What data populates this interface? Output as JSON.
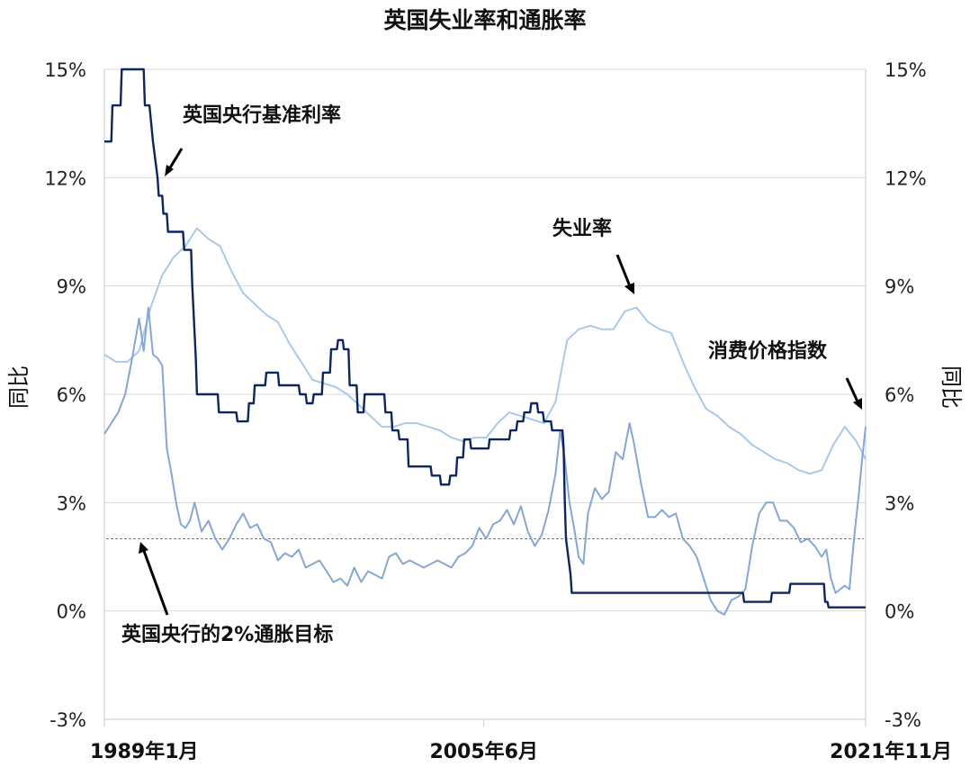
{
  "chart_data": {
    "type": "line",
    "title": "英国失业率和通胀率",
    "ylabel_left": "同比",
    "ylabel_right": "同比",
    "ylim": [
      -3,
      15
    ],
    "yticks": [
      "-3%",
      "0%",
      "3%",
      "6%",
      "9%",
      "12%",
      "15%"
    ],
    "ytick_values": [
      -3,
      0,
      3,
      6,
      9,
      12,
      15
    ],
    "xlim": [
      1989.0,
      2021.9
    ],
    "xtick_labels": [
      {
        "label": "1989年1月",
        "x": 1989.0
      },
      {
        "label": "2005年6月",
        "x": 2005.4
      },
      {
        "label": "2021年11月",
        "x": 2021.9
      }
    ],
    "grid": true,
    "target_line": {
      "value": 2.0
    },
    "series": [
      {
        "name": "英国央行基准利率",
        "color": "#0d2560",
        "x": [
          1989.0,
          1989.3,
          1989.35,
          1989.7,
          1989.75,
          1990.7,
          1990.75,
          1990.95,
          1991.1,
          1991.3,
          1991.35,
          1991.5,
          1991.55,
          1991.7,
          1991.75,
          1992.4,
          1992.45,
          1992.75,
          1992.8,
          1992.95,
          1993.0,
          1993.9,
          1993.95,
          1994.7,
          1994.75,
          1995.2,
          1995.25,
          1995.45,
          1995.5,
          1995.95,
          1996.0,
          1996.5,
          1996.55,
          1997.4,
          1997.45,
          1997.7,
          1997.75,
          1998.0,
          1998.05,
          1998.4,
          1998.45,
          1998.75,
          1998.8,
          1999.05,
          1999.1,
          1999.3,
          1999.35,
          1999.55,
          1999.6,
          1999.9,
          1999.95,
          2000.2,
          2000.25,
          2001.1,
          2001.15,
          2001.4,
          2001.45,
          2001.7,
          2001.75,
          2002.1,
          2002.15,
          2003.1,
          2003.15,
          2003.5,
          2003.55,
          2003.9,
          2003.95,
          2004.2,
          2004.25,
          2004.5,
          2004.55,
          2004.8,
          2004.85,
          2005.6,
          2005.65,
          2006.5,
          2006.55,
          2006.8,
          2006.85,
          2007.1,
          2007.15,
          2007.4,
          2007.45,
          2007.7,
          2007.75,
          2007.95,
          2008.0,
          2008.3,
          2008.35,
          2008.8,
          2008.85,
          2008.9,
          2008.95,
          2009.15,
          2009.2,
          2016.6,
          2016.65,
          2017.8,
          2017.85,
          2018.6,
          2018.65,
          2020.1,
          2020.15,
          2020.25,
          2020.3,
          2021.9
        ],
        "values": [
          13.0,
          13.0,
          14.0,
          14.0,
          15.0,
          15.0,
          14.0,
          14.0,
          13.0,
          12.0,
          11.5,
          11.5,
          11.0,
          11.0,
          10.5,
          10.5,
          10.0,
          10.0,
          9.0,
          7.0,
          6.0,
          6.0,
          5.5,
          5.5,
          5.25,
          5.25,
          5.75,
          5.75,
          6.25,
          6.25,
          6.6,
          6.6,
          6.25,
          6.25,
          6.0,
          6.0,
          5.75,
          5.75,
          6.0,
          6.0,
          6.6,
          6.6,
          7.25,
          7.25,
          7.5,
          7.5,
          7.25,
          7.25,
          6.25,
          6.25,
          5.5,
          5.5,
          6.0,
          6.0,
          5.5,
          5.5,
          5.0,
          5.0,
          4.75,
          4.75,
          4.0,
          4.0,
          3.75,
          3.75,
          3.5,
          3.5,
          3.75,
          3.75,
          4.25,
          4.25,
          4.75,
          4.75,
          4.5,
          4.5,
          4.75,
          4.75,
          5.0,
          5.0,
          5.25,
          5.25,
          5.5,
          5.5,
          5.75,
          5.75,
          5.5,
          5.5,
          5.25,
          5.25,
          5.0,
          5.0,
          4.5,
          3.0,
          2.0,
          1.0,
          0.5,
          0.5,
          0.25,
          0.25,
          0.5,
          0.5,
          0.75,
          0.75,
          0.25,
          0.25,
          0.1,
          0.1
        ]
      },
      {
        "name": "失业率",
        "color": "#a9c9e8",
        "x": [
          1989.0,
          1989.5,
          1990.0,
          1990.5,
          1991.0,
          1991.5,
          1992.0,
          1992.5,
          1993.0,
          1993.5,
          1994.0,
          1994.5,
          1995.0,
          1995.5,
          1996.0,
          1996.5,
          1997.0,
          1997.5,
          1998.0,
          1998.5,
          1999.0,
          1999.5,
          2000.0,
          2000.5,
          2001.0,
          2001.5,
          2002.0,
          2002.5,
          2003.0,
          2003.5,
          2004.0,
          2004.5,
          2005.0,
          2005.5,
          2006.0,
          2006.5,
          2007.0,
          2007.5,
          2008.0,
          2008.5,
          2009.0,
          2009.5,
          2010.0,
          2010.5,
          2011.0,
          2011.5,
          2012.0,
          2012.5,
          2013.0,
          2013.5,
          2014.0,
          2014.5,
          2015.0,
          2015.5,
          2016.0,
          2016.5,
          2017.0,
          2017.5,
          2018.0,
          2018.5,
          2019.0,
          2019.5,
          2020.0,
          2020.5,
          2021.0,
          2021.5,
          2021.9
        ],
        "values": [
          7.1,
          6.9,
          6.9,
          7.2,
          8.4,
          9.3,
          9.8,
          10.1,
          10.6,
          10.3,
          10.1,
          9.4,
          8.8,
          8.5,
          8.2,
          8.0,
          7.4,
          6.9,
          6.4,
          6.3,
          6.2,
          6.0,
          5.7,
          5.4,
          5.1,
          5.1,
          5.2,
          5.2,
          5.1,
          5.0,
          4.8,
          4.7,
          4.8,
          4.8,
          5.2,
          5.5,
          5.4,
          5.3,
          5.2,
          5.8,
          7.5,
          7.8,
          7.9,
          7.8,
          7.8,
          8.3,
          8.4,
          8.0,
          7.8,
          7.7,
          6.9,
          6.2,
          5.6,
          5.4,
          5.1,
          4.9,
          4.6,
          4.4,
          4.2,
          4.1,
          3.9,
          3.8,
          3.9,
          4.6,
          5.1,
          4.7,
          4.2
        ]
      },
      {
        "name": "消费价格指数",
        "color": "#86a6d3",
        "x": [
          1989.0,
          1989.3,
          1989.6,
          1989.9,
          1990.2,
          1990.5,
          1990.7,
          1990.9,
          1991.1,
          1991.3,
          1991.5,
          1991.7,
          1991.9,
          1992.1,
          1992.3,
          1992.5,
          1992.7,
          1992.9,
          1993.2,
          1993.5,
          1993.8,
          1994.1,
          1994.4,
          1994.7,
          1995.0,
          1995.3,
          1995.6,
          1995.9,
          1996.2,
          1996.5,
          1996.8,
          1997.1,
          1997.4,
          1997.7,
          1998.0,
          1998.3,
          1998.6,
          1998.9,
          1999.2,
          1999.5,
          1999.8,
          2000.1,
          2000.4,
          2000.7,
          2001.0,
          2001.3,
          2001.6,
          2001.9,
          2002.2,
          2002.5,
          2002.8,
          2003.1,
          2003.4,
          2003.7,
          2004.0,
          2004.3,
          2004.6,
          2004.9,
          2005.2,
          2005.5,
          2005.8,
          2006.1,
          2006.4,
          2006.7,
          2007.0,
          2007.3,
          2007.6,
          2007.9,
          2008.2,
          2008.5,
          2008.7,
          2008.9,
          2009.1,
          2009.3,
          2009.5,
          2009.7,
          2009.9,
          2010.2,
          2010.5,
          2010.8,
          2011.1,
          2011.4,
          2011.7,
          2011.9,
          2012.2,
          2012.5,
          2012.8,
          2013.1,
          2013.4,
          2013.7,
          2014.0,
          2014.3,
          2014.6,
          2014.9,
          2015.2,
          2015.5,
          2015.8,
          2016.1,
          2016.4,
          2016.7,
          2017.0,
          2017.3,
          2017.6,
          2017.9,
          2018.2,
          2018.5,
          2018.8,
          2019.1,
          2019.4,
          2019.7,
          2020.0,
          2020.2,
          2020.4,
          2020.6,
          2020.8,
          2021.0,
          2021.2,
          2021.4,
          2021.6,
          2021.75,
          2021.9
        ],
        "values": [
          4.9,
          5.2,
          5.5,
          6.0,
          7.0,
          8.1,
          7.2,
          8.4,
          7.1,
          7.0,
          6.8,
          4.5,
          3.8,
          3.0,
          2.4,
          2.3,
          2.5,
          3.0,
          2.2,
          2.5,
          2.0,
          1.7,
          2.0,
          2.4,
          2.7,
          2.3,
          2.4,
          2.0,
          1.9,
          1.4,
          1.6,
          1.5,
          1.7,
          1.2,
          1.3,
          1.4,
          1.1,
          0.8,
          0.9,
          0.7,
          1.2,
          0.8,
          1.1,
          1.0,
          0.9,
          1.5,
          1.6,
          1.3,
          1.4,
          1.3,
          1.2,
          1.3,
          1.4,
          1.3,
          1.2,
          1.5,
          1.6,
          1.8,
          2.3,
          2.0,
          2.4,
          2.5,
          2.8,
          2.4,
          2.9,
          2.2,
          1.8,
          2.1,
          2.8,
          3.8,
          5.0,
          4.2,
          3.0,
          2.3,
          1.5,
          1.3,
          2.7,
          3.4,
          3.1,
          3.3,
          4.4,
          4.2,
          5.2,
          4.6,
          3.5,
          2.6,
          2.6,
          2.8,
          2.6,
          2.7,
          2.0,
          1.8,
          1.5,
          0.9,
          0.3,
          0.0,
          -0.1,
          0.3,
          0.4,
          0.6,
          1.8,
          2.7,
          3.0,
          3.0,
          2.5,
          2.5,
          2.3,
          1.9,
          2.0,
          1.8,
          1.5,
          1.7,
          0.9,
          0.5,
          0.6,
          0.7,
          0.6,
          2.0,
          3.2,
          4.2,
          5.1
        ]
      }
    ],
    "annotations": [
      {
        "text": "英国央行基准利率"
      },
      {
        "text": "失业率"
      },
      {
        "text": "消费价格指数"
      },
      {
        "text": "英国央行的2%通胀目标"
      }
    ]
  }
}
